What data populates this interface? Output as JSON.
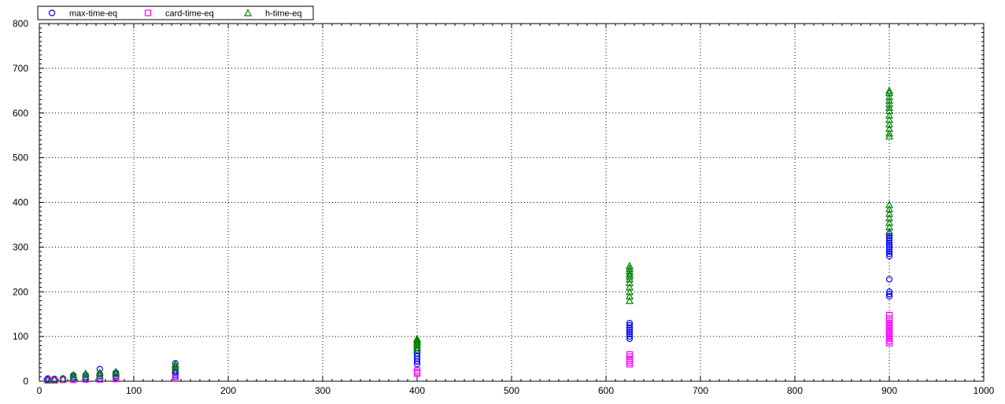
{
  "chart_data": {
    "type": "scatter",
    "title": "",
    "xlabel": "",
    "ylabel": "",
    "xlim": [
      0,
      1000
    ],
    "ylim": [
      0,
      800
    ],
    "x_ticks": [
      0,
      100,
      200,
      300,
      400,
      500,
      600,
      700,
      800,
      900,
      1000
    ],
    "y_ticks": [
      0,
      100,
      200,
      300,
      400,
      500,
      600,
      700,
      800
    ],
    "grid": true,
    "legend_position": "top-left",
    "series": [
      {
        "name": "max-time-eq",
        "marker": "circle",
        "color": "#0000ff",
        "points": [
          [
            8,
            4
          ],
          [
            9,
            2
          ],
          [
            9,
            6
          ],
          [
            16,
            3
          ],
          [
            16,
            5
          ],
          [
            25,
            3
          ],
          [
            25,
            6
          ],
          [
            36,
            5
          ],
          [
            36,
            9
          ],
          [
            36,
            13
          ],
          [
            49,
            6
          ],
          [
            49,
            10
          ],
          [
            49,
            14
          ],
          [
            64,
            6
          ],
          [
            64,
            11
          ],
          [
            64,
            16
          ],
          [
            64,
            27
          ],
          [
            81,
            8
          ],
          [
            81,
            12
          ],
          [
            81,
            16
          ],
          [
            81,
            19
          ],
          [
            144,
            10
          ],
          [
            144,
            14
          ],
          [
            144,
            18
          ],
          [
            144,
            22
          ],
          [
            144,
            26
          ],
          [
            144,
            32
          ],
          [
            144,
            40
          ],
          [
            400,
            38
          ],
          [
            400,
            44
          ],
          [
            400,
            50
          ],
          [
            400,
            56
          ],
          [
            400,
            62
          ],
          [
            400,
            68
          ],
          [
            625,
            95
          ],
          [
            625,
            100
          ],
          [
            625,
            105
          ],
          [
            625,
            110
          ],
          [
            625,
            115
          ],
          [
            625,
            120
          ],
          [
            625,
            125
          ],
          [
            625,
            130
          ],
          [
            900,
            190
          ],
          [
            900,
            195
          ],
          [
            900,
            200
          ],
          [
            900,
            228
          ],
          [
            900,
            280
          ],
          [
            900,
            285
          ],
          [
            900,
            290
          ],
          [
            900,
            295
          ],
          [
            900,
            300
          ],
          [
            900,
            305
          ],
          [
            900,
            310
          ],
          [
            900,
            315
          ],
          [
            900,
            320
          ],
          [
            900,
            325
          ],
          [
            900,
            330
          ]
        ]
      },
      {
        "name": "card-time-eq",
        "marker": "square",
        "color": "#ff00ff",
        "points": [
          [
            9,
            2
          ],
          [
            16,
            2
          ],
          [
            25,
            3
          ],
          [
            36,
            3
          ],
          [
            49,
            4
          ],
          [
            64,
            4
          ],
          [
            81,
            5
          ],
          [
            144,
            7
          ],
          [
            400,
            17
          ],
          [
            400,
            20
          ],
          [
            400,
            24
          ],
          [
            625,
            38
          ],
          [
            625,
            42
          ],
          [
            625,
            46
          ],
          [
            625,
            50
          ],
          [
            625,
            55
          ],
          [
            625,
            60
          ],
          [
            900,
            85
          ],
          [
            900,
            90
          ],
          [
            900,
            95
          ],
          [
            900,
            100
          ],
          [
            900,
            105
          ],
          [
            900,
            110
          ],
          [
            900,
            115
          ],
          [
            900,
            120
          ],
          [
            900,
            125
          ],
          [
            900,
            130
          ],
          [
            900,
            135
          ],
          [
            900,
            140
          ],
          [
            900,
            148
          ]
        ]
      },
      {
        "name": "h-time-eq",
        "marker": "triangle",
        "color": "#008000",
        "points": [
          [
            9,
            3
          ],
          [
            16,
            4
          ],
          [
            25,
            6
          ],
          [
            36,
            9
          ],
          [
            36,
            14
          ],
          [
            49,
            10
          ],
          [
            49,
            17
          ],
          [
            64,
            13
          ],
          [
            64,
            19
          ],
          [
            81,
            17
          ],
          [
            81,
            21
          ],
          [
            144,
            26
          ],
          [
            144,
            33
          ],
          [
            144,
            38
          ],
          [
            400,
            70
          ],
          [
            400,
            75
          ],
          [
            400,
            80
          ],
          [
            400,
            84
          ],
          [
            400,
            88
          ],
          [
            400,
            92
          ],
          [
            400,
            95
          ],
          [
            625,
            180
          ],
          [
            625,
            190
          ],
          [
            625,
            200
          ],
          [
            625,
            210
          ],
          [
            625,
            220
          ],
          [
            625,
            228
          ],
          [
            625,
            235
          ],
          [
            625,
            240
          ],
          [
            625,
            246
          ],
          [
            625,
            252
          ],
          [
            625,
            258
          ],
          [
            900,
            335
          ],
          [
            900,
            345
          ],
          [
            900,
            355
          ],
          [
            900,
            365
          ],
          [
            900,
            375
          ],
          [
            900,
            385
          ],
          [
            900,
            395
          ],
          [
            900,
            548
          ],
          [
            900,
            555
          ],
          [
            900,
            565
          ],
          [
            900,
            575
          ],
          [
            900,
            585
          ],
          [
            900,
            595
          ],
          [
            900,
            605
          ],
          [
            900,
            612
          ],
          [
            900,
            620
          ],
          [
            900,
            628
          ],
          [
            900,
            636
          ],
          [
            900,
            645
          ],
          [
            900,
            650
          ]
        ]
      }
    ]
  }
}
